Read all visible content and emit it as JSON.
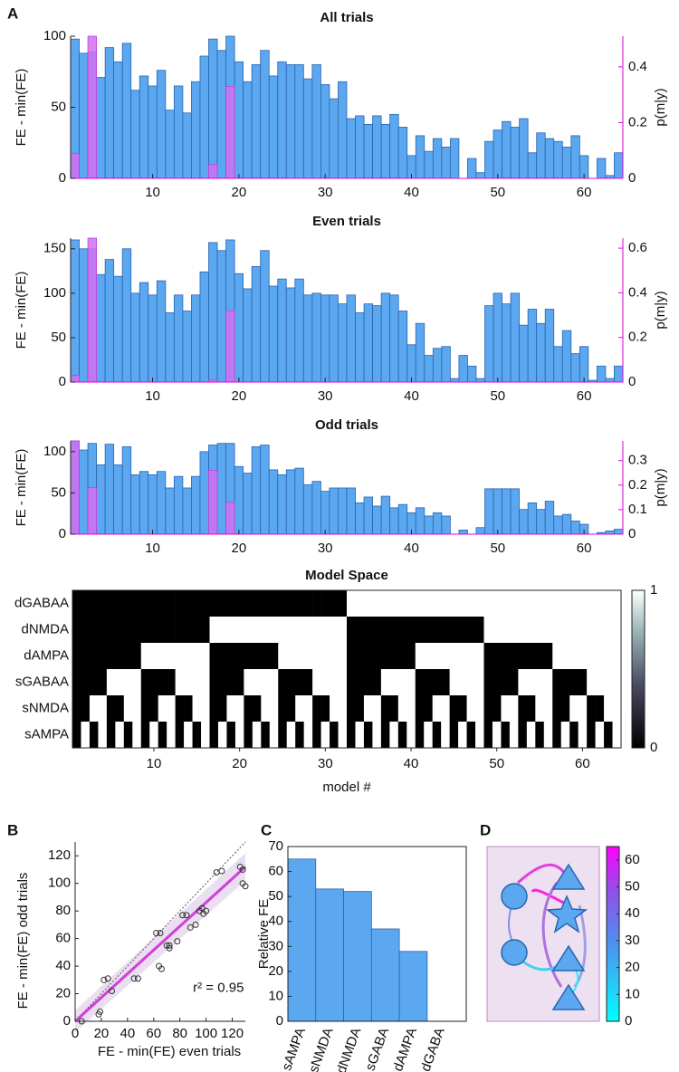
{
  "panel_labels": [
    "A",
    "B",
    "C",
    "D"
  ],
  "chart_data": [
    {
      "type": "bar",
      "title": "All trials",
      "ylabel": "FE - min(FE)",
      "y2label": "p(m|y)",
      "x": [
        1,
        2,
        3,
        4,
        5,
        6,
        7,
        8,
        9,
        10,
        11,
        12,
        13,
        14,
        15,
        16,
        17,
        18,
        19,
        20,
        21,
        22,
        23,
        24,
        25,
        26,
        27,
        28,
        29,
        30,
        31,
        32,
        33,
        34,
        35,
        36,
        37,
        38,
        39,
        40,
        41,
        42,
        43,
        44,
        45,
        46,
        47,
        48,
        49,
        50,
        51,
        52,
        53,
        54,
        55,
        56,
        57,
        58,
        59,
        60,
        61,
        62,
        63,
        64
      ],
      "xlim": [
        0.5,
        64.5
      ],
      "xticks": [
        10,
        20,
        30,
        40,
        50,
        60
      ],
      "ylim": [
        0,
        100
      ],
      "yticks": [
        0,
        50,
        100
      ],
      "y2lim": [
        0,
        0.51
      ],
      "y2ticks": [
        0,
        0.2,
        0.4
      ],
      "y2color": "#e000e0",
      "series": [
        {
          "color": "#5ba8f0",
          "edgecolor": "#2a64b0",
          "values": [
            98,
            88,
            89,
            71,
            92,
            82,
            95,
            62,
            72,
            65,
            76,
            48,
            65,
            46,
            68,
            86,
            98,
            90,
            100,
            82,
            68,
            80,
            90,
            72,
            82,
            80,
            80,
            70,
            80,
            66,
            56,
            68,
            42,
            44,
            38,
            44,
            38,
            45,
            36,
            16,
            30,
            19,
            28,
            22,
            28,
            0,
            14,
            4,
            26,
            34,
            40,
            36,
            42,
            18,
            32,
            28,
            26,
            22,
            30,
            16,
            0,
            14,
            2,
            18
          ]
        },
        {
          "color": "#d070f0",
          "edgecolor": "#c040e0",
          "axis": "y2",
          "values": [
            0.09,
            0,
            0.51,
            0,
            0,
            0,
            0,
            0,
            0,
            0,
            0,
            0,
            0,
            0,
            0,
            0,
            0.05,
            0,
            0.33,
            0,
            0,
            0,
            0,
            0,
            0,
            0,
            0,
            0,
            0,
            0,
            0,
            0,
            0,
            0,
            0,
            0,
            0,
            0,
            0,
            0,
            0,
            0,
            0,
            0,
            0,
            0,
            0,
            0,
            0,
            0,
            0,
            0,
            0,
            0,
            0,
            0,
            0,
            0,
            0,
            0,
            0,
            0,
            0,
            0
          ]
        }
      ]
    },
    {
      "type": "bar",
      "title": "Even trials",
      "ylabel": "FE - min(FE)",
      "y2label": "p(m|y)",
      "x": [
        1,
        2,
        3,
        4,
        5,
        6,
        7,
        8,
        9,
        10,
        11,
        12,
        13,
        14,
        15,
        16,
        17,
        18,
        19,
        20,
        21,
        22,
        23,
        24,
        25,
        26,
        27,
        28,
        29,
        30,
        31,
        32,
        33,
        34,
        35,
        36,
        37,
        38,
        39,
        40,
        41,
        42,
        43,
        44,
        45,
        46,
        47,
        48,
        49,
        50,
        51,
        52,
        53,
        54,
        55,
        56,
        57,
        58,
        59,
        60,
        61,
        62,
        63,
        64
      ],
      "xlim": [
        0.5,
        64.5
      ],
      "xticks": [
        10,
        20,
        30,
        40,
        50,
        60
      ],
      "ylim": [
        0,
        162
      ],
      "yticks": [
        0,
        50,
        100,
        150
      ],
      "y2lim": [
        0,
        0.645
      ],
      "y2ticks": [
        0,
        0.2,
        0.4,
        0.6
      ],
      "y2color": "#e000e0",
      "series": [
        {
          "color": "#5ba8f0",
          "edgecolor": "#2a64b0",
          "values": [
            160,
            150,
            150,
            121,
            138,
            119,
            150,
            100,
            112,
            98,
            114,
            78,
            98,
            80,
            98,
            124,
            157,
            148,
            160,
            122,
            105,
            130,
            148,
            108,
            116,
            106,
            116,
            98,
            100,
            98,
            98,
            88,
            98,
            78,
            88,
            86,
            100,
            98,
            80,
            42,
            66,
            30,
            38,
            40,
            4,
            30,
            18,
            4,
            86,
            100,
            88,
            100,
            64,
            82,
            66,
            82,
            40,
            58,
            32,
            40,
            2,
            18,
            4,
            18
          ]
        },
        {
          "color": "#d070f0",
          "edgecolor": "#c040e0",
          "axis": "y2",
          "values": [
            0.03,
            0,
            0.645,
            0,
            0,
            0,
            0,
            0,
            0,
            0,
            0,
            0,
            0,
            0,
            0,
            0,
            0.01,
            0,
            0.32,
            0,
            0,
            0,
            0,
            0,
            0,
            0,
            0,
            0,
            0,
            0,
            0,
            0,
            0,
            0,
            0,
            0,
            0,
            0,
            0,
            0,
            0,
            0,
            0,
            0,
            0,
            0,
            0,
            0,
            0,
            0,
            0,
            0,
            0,
            0,
            0,
            0,
            0,
            0,
            0,
            0,
            0,
            0,
            0,
            0
          ]
        }
      ]
    },
    {
      "type": "bar",
      "title": "Odd trials",
      "ylabel": "FE - min(FE)",
      "y2label": "p(m|y)",
      "x": [
        1,
        2,
        3,
        4,
        5,
        6,
        7,
        8,
        9,
        10,
        11,
        12,
        13,
        14,
        15,
        16,
        17,
        18,
        19,
        20,
        21,
        22,
        23,
        24,
        25,
        26,
        27,
        28,
        29,
        30,
        31,
        32,
        33,
        34,
        35,
        36,
        37,
        38,
        39,
        40,
        41,
        42,
        43,
        44,
        45,
        46,
        47,
        48,
        49,
        50,
        51,
        52,
        53,
        54,
        55,
        56,
        57,
        58,
        59,
        60,
        61,
        62,
        63,
        64
      ],
      "xlim": [
        0.5,
        64.5
      ],
      "xticks": [
        10,
        20,
        30,
        40,
        50,
        60
      ],
      "ylim": [
        0,
        113
      ],
      "yticks": [
        0,
        50,
        100
      ],
      "y2lim": [
        0,
        0.38
      ],
      "y2ticks": [
        0,
        0.1,
        0.2,
        0.3
      ],
      "y2color": "#e000e0",
      "series": [
        {
          "color": "#5ba8f0",
          "edgecolor": "#2a64b0",
          "values": [
            113,
            102,
            110,
            84,
            109,
            84,
            106,
            72,
            76,
            72,
            76,
            56,
            70,
            56,
            70,
            100,
            108,
            110,
            110,
            82,
            74,
            106,
            108,
            78,
            72,
            78,
            80,
            60,
            64,
            52,
            56,
            56,
            56,
            38,
            45,
            34,
            46,
            32,
            36,
            26,
            32,
            22,
            26,
            22,
            0,
            5,
            0,
            8,
            55,
            55,
            55,
            55,
            30,
            38,
            30,
            40,
            22,
            24,
            16,
            12,
            0,
            2,
            4,
            6
          ]
        },
        {
          "color": "#d070f0",
          "edgecolor": "#c040e0",
          "axis": "y2",
          "values": [
            0.38,
            0,
            0.19,
            0,
            0,
            0,
            0,
            0,
            0,
            0,
            0,
            0,
            0,
            0,
            0,
            0,
            0.26,
            0,
            0.13,
            0,
            0,
            0,
            0,
            0,
            0,
            0,
            0,
            0,
            0,
            0,
            0,
            0,
            0,
            0,
            0,
            0,
            0,
            0,
            0,
            0,
            0,
            0,
            0,
            0,
            0,
            0,
            0,
            0,
            0,
            0,
            0,
            0,
            0,
            0,
            0,
            0,
            0,
            0,
            0,
            0,
            0,
            0,
            0,
            0
          ]
        }
      ]
    },
    {
      "type": "heatmap",
      "title": "Model Space",
      "xlabel": "model #",
      "rows": [
        "dGABAA",
        "dNMDA",
        "dAMPA",
        "sGABAA",
        "sNMDA",
        "sAMPA"
      ],
      "x": [
        1,
        2,
        3,
        4,
        5,
        6,
        7,
        8,
        9,
        10,
        11,
        12,
        13,
        14,
        15,
        16,
        17,
        18,
        19,
        20,
        21,
        22,
        23,
        24,
        25,
        26,
        27,
        28,
        29,
        30,
        31,
        32,
        33,
        34,
        35,
        36,
        37,
        38,
        39,
        40,
        41,
        42,
        43,
        44,
        45,
        46,
        47,
        48,
        49,
        50,
        51,
        52,
        53,
        54,
        55,
        56,
        57,
        58,
        59,
        60,
        61,
        62,
        63,
        64
      ],
      "xlim": [
        0.5,
        64.5
      ],
      "xticks": [
        10,
        20,
        30,
        40,
        50,
        60
      ],
      "clim": [
        0,
        1
      ],
      "cticks": [
        0,
        1
      ],
      "values": [
        [
          0,
          0,
          0,
          0,
          0,
          0,
          0,
          0,
          0,
          0,
          0,
          0,
          0,
          0,
          0,
          0,
          0,
          0,
          0,
          0,
          0,
          0,
          0,
          0,
          0,
          0,
          0,
          0,
          0,
          0,
          0,
          0,
          1,
          1,
          1,
          1,
          1,
          1,
          1,
          1,
          1,
          1,
          1,
          1,
          1,
          1,
          1,
          1,
          1,
          1,
          1,
          1,
          1,
          1,
          1,
          1,
          1,
          1,
          1,
          1,
          1,
          1,
          1,
          1
        ],
        [
          0,
          0,
          0,
          0,
          0,
          0,
          0,
          0,
          0,
          0,
          0,
          0,
          0,
          0,
          0,
          0,
          1,
          1,
          1,
          1,
          1,
          1,
          1,
          1,
          1,
          1,
          1,
          1,
          1,
          1,
          1,
          1,
          0,
          0,
          0,
          0,
          0,
          0,
          0,
          0,
          0,
          0,
          0,
          0,
          0,
          0,
          0,
          0,
          1,
          1,
          1,
          1,
          1,
          1,
          1,
          1,
          1,
          1,
          1,
          1,
          1,
          1,
          1,
          1
        ],
        [
          0,
          0,
          0,
          0,
          0,
          0,
          0,
          0,
          1,
          1,
          1,
          1,
          1,
          1,
          1,
          1,
          0,
          0,
          0,
          0,
          0,
          0,
          0,
          0,
          1,
          1,
          1,
          1,
          1,
          1,
          1,
          1,
          0,
          0,
          0,
          0,
          0,
          0,
          0,
          0,
          1,
          1,
          1,
          1,
          1,
          1,
          1,
          1,
          0,
          0,
          0,
          0,
          0,
          0,
          0,
          0,
          1,
          1,
          1,
          1,
          1,
          1,
          1,
          1
        ],
        [
          0,
          0,
          0,
          0,
          1,
          1,
          1,
          1,
          0,
          0,
          0,
          0,
          1,
          1,
          1,
          1,
          0,
          0,
          0,
          0,
          1,
          1,
          1,
          1,
          0,
          0,
          0,
          0,
          1,
          1,
          1,
          1,
          0,
          0,
          0,
          0,
          1,
          1,
          1,
          1,
          0,
          0,
          0,
          0,
          1,
          1,
          1,
          1,
          0,
          0,
          0,
          0,
          1,
          1,
          1,
          1,
          0,
          0,
          0,
          0,
          1,
          1,
          1,
          1
        ],
        [
          0,
          0,
          1,
          1,
          0,
          0,
          1,
          1,
          0,
          0,
          1,
          1,
          0,
          0,
          1,
          1,
          0,
          0,
          1,
          1,
          0,
          0,
          1,
          1,
          0,
          0,
          1,
          1,
          0,
          0,
          1,
          1,
          0,
          0,
          1,
          1,
          0,
          0,
          1,
          1,
          0,
          0,
          1,
          1,
          0,
          0,
          1,
          1,
          0,
          0,
          1,
          1,
          0,
          0,
          1,
          1,
          0,
          0,
          1,
          1,
          0,
          0,
          1,
          1
        ],
        [
          0,
          1,
          0,
          1,
          0,
          1,
          0,
          1,
          0,
          1,
          0,
          1,
          0,
          1,
          0,
          1,
          0,
          1,
          0,
          1,
          0,
          1,
          0,
          1,
          0,
          1,
          0,
          1,
          0,
          1,
          0,
          1,
          0,
          1,
          0,
          1,
          0,
          1,
          0,
          1,
          0,
          1,
          0,
          1,
          0,
          1,
          0,
          1,
          0,
          1,
          0,
          1,
          0,
          1,
          0,
          1,
          0,
          1,
          0,
          1,
          0,
          1,
          0,
          1
        ]
      ]
    },
    {
      "type": "scatter",
      "xlabel": "FE - min(FE) even trials",
      "ylabel": "FE - min(FE) odd trials",
      "annotation": "r² = 0.95",
      "xlim": [
        0,
        130
      ],
      "ylim": [
        0,
        130
      ],
      "xticks": [
        0,
        20,
        40,
        60,
        80,
        100,
        120
      ],
      "yticks": [
        0,
        20,
        40,
        60,
        80,
        100,
        120
      ],
      "color": "#333333",
      "fit_color": "#d040d8",
      "band_color": "#e6d6ee",
      "x": [
        5,
        18,
        19,
        22,
        25,
        28,
        45,
        48,
        62,
        65,
        64,
        66,
        70,
        72,
        72,
        78,
        82,
        85,
        88,
        92,
        95,
        97,
        100,
        98,
        108,
        112,
        126,
        128,
        128,
        130
      ],
      "y": [
        0,
        5,
        7,
        30,
        31,
        22,
        31,
        31,
        64,
        64,
        40,
        38,
        55,
        53,
        55,
        58,
        77,
        77,
        68,
        70,
        80,
        82,
        80,
        78,
        108,
        109,
        112,
        110,
        100,
        98
      ],
      "fit": {
        "x": [
          0,
          130
        ],
        "y": [
          0,
          112
        ],
        "lower": [
          -8,
          102
        ],
        "upper": [
          8,
          122
        ]
      }
    },
    {
      "type": "bar",
      "ylabel": "Relative FE",
      "categories": [
        "sAMPA",
        "sNMDA",
        "dNMDA",
        "sGABA",
        "dAMPA",
        "dGABA"
      ],
      "values": [
        65,
        53,
        52,
        37,
        28,
        0
      ],
      "ylim": [
        0,
        70
      ],
      "yticks": [
        0,
        10,
        20,
        30,
        40,
        50,
        60,
        70
      ],
      "color": "#5ba8f0",
      "edgecolor": "#2a64b0"
    },
    {
      "type": "network",
      "clim": [
        0,
        65
      ],
      "cticks": [
        0,
        10,
        20,
        30,
        40,
        50,
        60
      ]
    }
  ]
}
